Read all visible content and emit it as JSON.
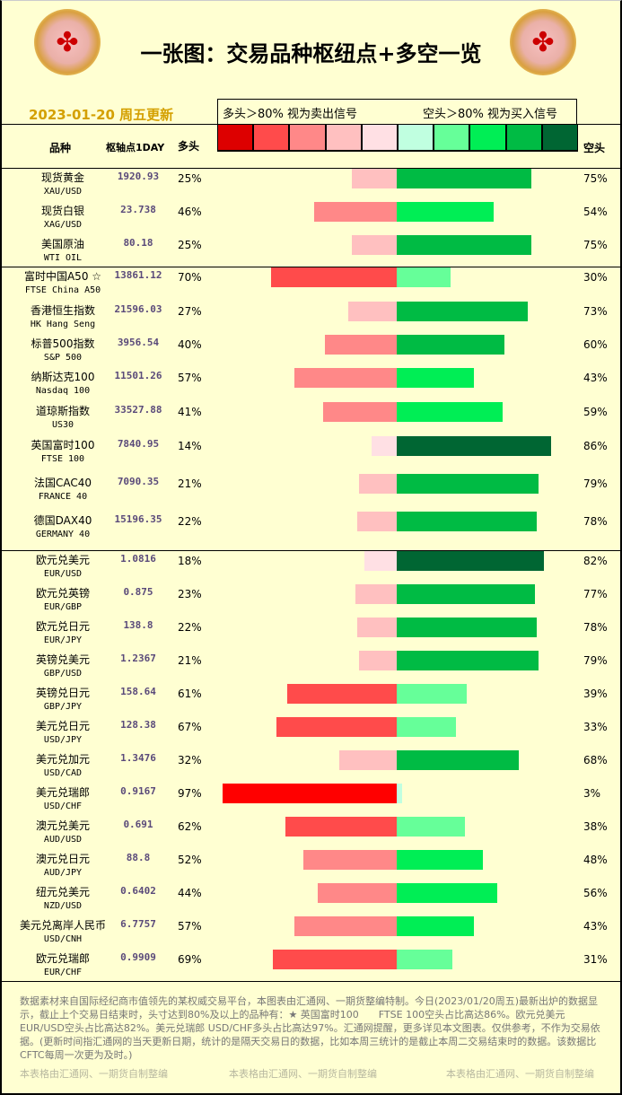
{
  "title": "一张图：交易品种枢纽点+多空一览",
  "date": "2023-01-20 周五更新",
  "legend": {
    "left": "多头＞80% 视为卖出信号",
    "right": "空头＞80% 视为买入信号"
  },
  "headers": {
    "name": "品种",
    "pivot": "枢轴点1DAY",
    "long": "多头",
    "short": "空头"
  },
  "colors": {
    "long_scale": [
      "#dd0000",
      "#ff4b4b",
      "#ff8888",
      "#ffc0c0",
      "#ffe0e4"
    ],
    "short_scale": [
      "#c0ffe0",
      "#66ff99",
      "#00ee55",
      "#00bb44",
      "#006633"
    ],
    "extreme_long": "#ff0000"
  },
  "groups": [
    {
      "rows": [
        {
          "name": "现货黄金",
          "code": "XAU/USD",
          "pivot": "1920.93",
          "long": 25,
          "short": 75
        },
        {
          "name": "现货白银",
          "code": "XAG/USD",
          "pivot": "23.738",
          "long": 46,
          "short": 54
        },
        {
          "name": "美国原油",
          "code": "WTI OIL",
          "pivot": "80.18",
          "long": 25,
          "short": 75
        }
      ]
    },
    {
      "rows": [
        {
          "name": "富时中国A50 ☆",
          "code": "FTSE China A50",
          "pivot": "13861.12",
          "long": 70,
          "short": 30
        },
        {
          "name": "香港恒生指数",
          "code": "HK Hang Seng",
          "pivot": "21596.03",
          "long": 27,
          "short": 73
        },
        {
          "name": "标普500指数",
          "code": "S&P 500",
          "pivot": "3956.54",
          "long": 40,
          "short": 60
        },
        {
          "name": "纳斯达克100",
          "code": "Nasdaq 100",
          "pivot": "11501.26",
          "long": 57,
          "short": 43
        },
        {
          "name": "道琼斯指数",
          "code": "US30",
          "pivot": "33527.88",
          "long": 41,
          "short": 59
        },
        {
          "name": "英国富时100",
          "code": "FTSE 100",
          "pivot": "7840.95",
          "long": 14,
          "short": 86
        },
        {
          "name": "法国CAC40",
          "code": "FRANCE 40",
          "pivot": "7090.35",
          "long": 21,
          "short": 79
        },
        {
          "name": "德国DAX40",
          "code": "GERMANY 40",
          "pivot": "15196.35",
          "long": 22,
          "short": 78
        }
      ]
    },
    {
      "rows": [
        {
          "name": "欧元兑美元",
          "code": "EUR/USD",
          "pivot": "1.0816",
          "long": 18,
          "short": 82
        },
        {
          "name": "欧元兑英镑",
          "code": "EUR/GBP",
          "pivot": "0.875",
          "long": 23,
          "short": 77
        },
        {
          "name": "欧元兑日元",
          "code": "EUR/JPY",
          "pivot": "138.8",
          "long": 22,
          "short": 78
        },
        {
          "name": "英镑兑美元",
          "code": "GBP/USD",
          "pivot": "1.2367",
          "long": 21,
          "short": 79
        },
        {
          "name": "英镑兑日元",
          "code": "GBP/JPY",
          "pivot": "158.64",
          "long": 61,
          "short": 39
        },
        {
          "name": "美元兑日元",
          "code": "USD/JPY",
          "pivot": "128.38",
          "long": 67,
          "short": 33
        },
        {
          "name": "美元兑加元",
          "code": "USD/CAD",
          "pivot": "1.3476",
          "long": 32,
          "short": 68
        },
        {
          "name": "美元兑瑞郎",
          "code": "USD/CHF",
          "pivot": "0.9167",
          "long": 97,
          "short": 3
        },
        {
          "name": "澳元兑美元",
          "code": "AUD/USD",
          "pivot": "0.691",
          "long": 62,
          "short": 38
        },
        {
          "name": "澳元兑日元",
          "code": "AUD/JPY",
          "pivot": "88.8",
          "long": 52,
          "short": 48
        },
        {
          "name": "纽元兑美元",
          "code": "NZD/USD",
          "pivot": "0.6402",
          "long": 44,
          "short": 56
        },
        {
          "name": "美元兑离岸人民币",
          "code": "USD/CNH",
          "pivot": "6.7757",
          "long": 57,
          "short": 43
        },
        {
          "name": "欧元兑瑞郎",
          "code": "EUR/CHF",
          "pivot": "0.9909",
          "long": 69,
          "short": 31
        }
      ]
    }
  ],
  "footer": "数据素材来自国际经纪商市值领先的某权威交易平台，本图表由汇通网、一期货整编特制。今日(2023/01/20周五)最新出炉的数据显示，截止上个交易日结束时，头寸达到80%及以上的品种有：★ 英国富时100　　FTSE 100空头占比高达86%。欧元兑美元 EUR/USD空头占比高达82%。美元兑瑞郎 USD/CHF多头占比高达97%。汇通网提醒，更多详见本文图表。仅供参考，不作为交易依据。(更新时间指汇通网的当天更新日期，统计的是隔天交易日的数据，比如本周三统计的是截止本周二交易结束时的数据。该数据比CFTC每周一次更为及时。)",
  "watermark": "本表格由汇通网、一期货自制整编"
}
